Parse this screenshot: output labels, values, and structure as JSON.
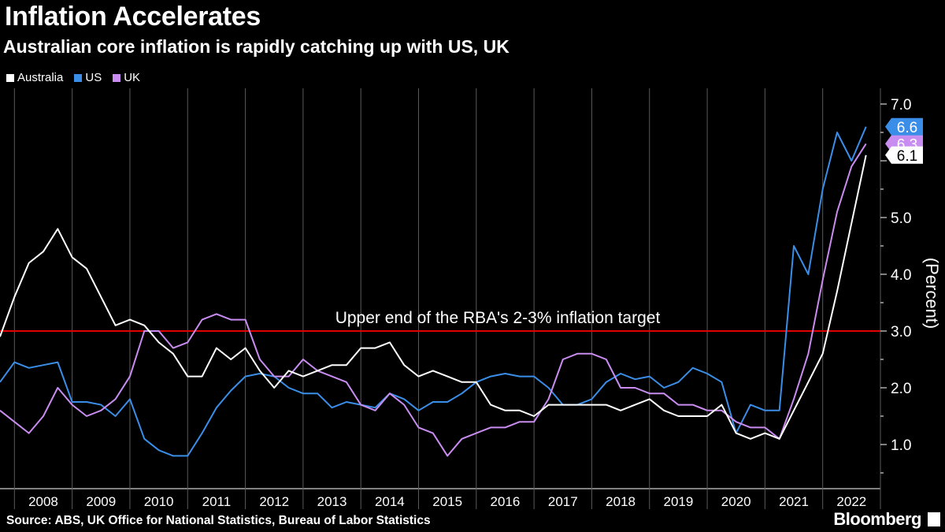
{
  "header": {
    "title": "Inflation Accelerates",
    "subtitle": "Australian core inflation is rapidly catching up with US, UK"
  },
  "footer": {
    "source": "Source: ABS, UK Office for National Statistics, Bureau of Labor Statistics",
    "brand": "Bloomberg"
  },
  "colors": {
    "australia": "#ffffff",
    "us": "#3b8ee8",
    "uk": "#c98cf0",
    "target": "#e00000",
    "background": "#000000"
  },
  "chart_data": {
    "type": "line",
    "title": "Inflation Accelerates",
    "subtitle": "Australian core inflation is rapidly catching up with US, UK",
    "ylabel": "(Percent)",
    "ylim": [
      0.3,
      7.2
    ],
    "yticks": [
      1.0,
      2.0,
      3.0,
      4.0,
      5.0,
      6.0,
      7.0
    ],
    "ytick_labels": [
      "1.0",
      "2.0",
      "3.0",
      "4.0",
      "5.0",
      "",
      "7.0"
    ],
    "x_start": 2007.5,
    "x_end": 2022.75,
    "year_labels": [
      "2008",
      "2009",
      "2010",
      "2011",
      "2012",
      "2013",
      "2014",
      "2015",
      "2016",
      "2017",
      "2018",
      "2019",
      "2020",
      "2021",
      "2022"
    ],
    "legend": [
      "Australia",
      "US",
      "UK"
    ],
    "annotation": {
      "text": "Upper end of the RBA's 2-3% inflation target",
      "y": 3.0
    },
    "series": [
      {
        "name": "Australia",
        "color": "#ffffff",
        "last_label": "6.1",
        "values": [
          2.9,
          3.6,
          4.2,
          4.4,
          4.8,
          4.3,
          4.1,
          3.6,
          3.1,
          3.2,
          3.1,
          2.8,
          2.6,
          2.2,
          2.2,
          2.7,
          2.5,
          2.7,
          2.3,
          2.0,
          2.3,
          2.2,
          2.3,
          2.4,
          2.4,
          2.7,
          2.7,
          2.8,
          2.4,
          2.2,
          2.3,
          2.2,
          2.1,
          2.1,
          1.7,
          1.6,
          1.6,
          1.5,
          1.7,
          1.7,
          1.7,
          1.7,
          1.7,
          1.6,
          1.7,
          1.8,
          1.6,
          1.5,
          1.5,
          1.5,
          1.7,
          1.2,
          1.1,
          1.2,
          1.1,
          1.6,
          2.1,
          2.6,
          3.7,
          4.9,
          6.1
        ]
      },
      {
        "name": "US",
        "color": "#3b8ee8",
        "last_label": "6.6",
        "values": [
          2.1,
          2.45,
          2.35,
          2.4,
          2.45,
          1.75,
          1.75,
          1.7,
          1.5,
          1.8,
          1.1,
          0.9,
          0.8,
          0.8,
          1.2,
          1.65,
          1.95,
          2.2,
          2.25,
          2.2,
          2.0,
          1.9,
          1.9,
          1.65,
          1.75,
          1.7,
          1.65,
          1.9,
          1.8,
          1.6,
          1.75,
          1.75,
          1.9,
          2.1,
          2.2,
          2.25,
          2.2,
          2.2,
          2.0,
          1.7,
          1.7,
          1.8,
          2.1,
          2.25,
          2.15,
          2.2,
          2.0,
          2.1,
          2.35,
          2.25,
          2.1,
          1.2,
          1.7,
          1.6,
          1.6,
          4.5,
          4.0,
          5.5,
          6.5,
          6.0,
          6.6
        ]
      },
      {
        "name": "UK",
        "color": "#c98cf0",
        "last_label": "6.3",
        "values": [
          1.6,
          1.4,
          1.2,
          1.5,
          2.0,
          1.7,
          1.5,
          1.6,
          1.8,
          2.2,
          3.0,
          3.0,
          2.7,
          2.8,
          3.2,
          3.3,
          3.2,
          3.2,
          2.5,
          2.2,
          2.2,
          2.5,
          2.3,
          2.2,
          2.1,
          1.7,
          1.6,
          1.9,
          1.7,
          1.3,
          1.2,
          0.8,
          1.1,
          1.2,
          1.3,
          1.3,
          1.4,
          1.4,
          1.8,
          2.5,
          2.6,
          2.6,
          2.5,
          2.0,
          2.0,
          1.9,
          1.9,
          1.7,
          1.7,
          1.6,
          1.6,
          1.4,
          1.3,
          1.3,
          1.1,
          1.8,
          2.6,
          3.9,
          5.1,
          5.9,
          6.3
        ]
      }
    ]
  }
}
